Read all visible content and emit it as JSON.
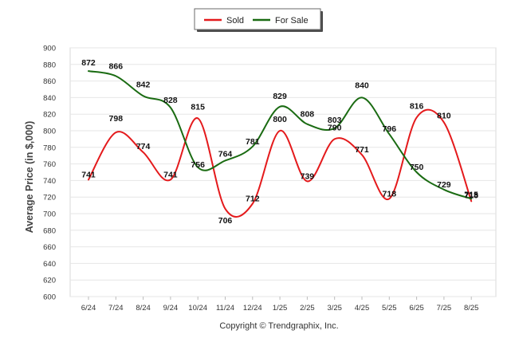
{
  "copyright": "Copyright © Trendgraphix, Inc.",
  "chart_data": {
    "type": "line",
    "title": "",
    "xlabel": "",
    "ylabel": "Average Price (in $,000)",
    "ylim": [
      600,
      900
    ],
    "ytick_step": 20,
    "grid": "horizontal",
    "legend_position": "top-center",
    "categories": [
      "6/24",
      "7/24",
      "8/24",
      "9/24",
      "10/24",
      "11/24",
      "12/24",
      "1/25",
      "2/25",
      "3/25",
      "4/25",
      "5/25",
      "6/25",
      "7/25",
      "8/25"
    ],
    "series": [
      {
        "name": "Sold",
        "color": "#e41a1c",
        "values": [
          741,
          798,
          774,
          741,
          815,
          706,
          712,
          800,
          739,
          790,
          771,
          718,
          816,
          810,
          715
        ]
      },
      {
        "name": "For Sale",
        "color": "#1a6b12",
        "values": [
          872,
          866,
          842,
          828,
          756,
          764,
          781,
          829,
          808,
          803,
          840,
          796,
          750,
          729,
          718
        ]
      }
    ],
    "point_labels": [
      {
        "series": "Sold",
        "labels": [
          "741",
          "798",
          "774",
          "741",
          "815",
          "706",
          "712",
          "800",
          "739",
          "790",
          "771",
          "718",
          "816",
          "810",
          "715"
        ]
      },
      {
        "series": "For Sale",
        "labels": [
          "872",
          "866",
          "842",
          "828",
          "756",
          "764",
          "781",
          "829",
          "808",
          "803",
          "840",
          "796",
          "750",
          "729",
          "718"
        ]
      }
    ]
  }
}
